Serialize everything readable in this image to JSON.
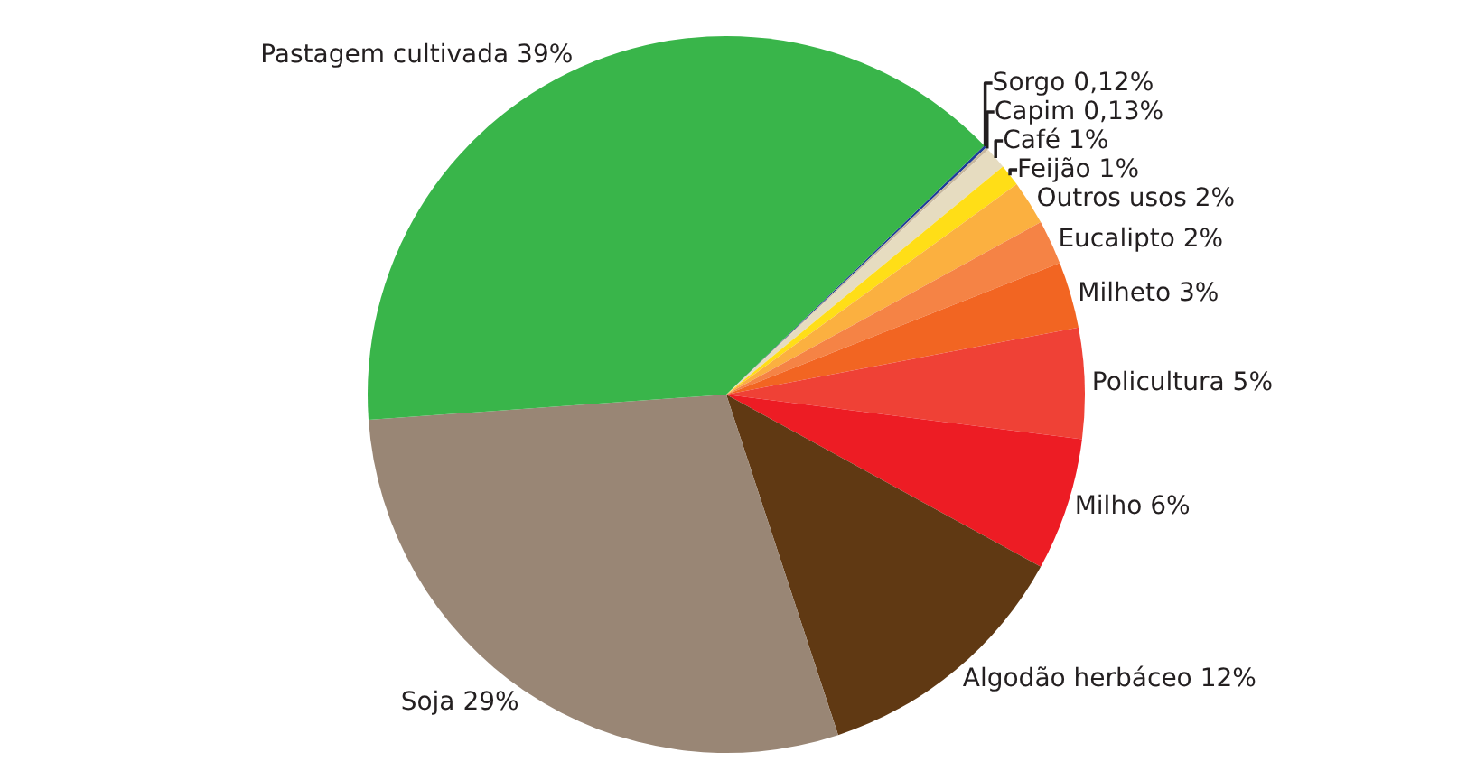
{
  "chart_data": {
    "type": "pie",
    "categories": [
      "Sorgo",
      "Capim",
      "Café",
      "Feijão",
      "Outros usos",
      "Eucalipto",
      "Milheto",
      "Policultura",
      "Milho",
      "Algodão herbáceo",
      "Soja",
      "Pastagem cultivada"
    ],
    "values": [
      0.12,
      0.13,
      1,
      1,
      2,
      2,
      3,
      5,
      6,
      12,
      29,
      39
    ],
    "colors": [
      "#1f3c99",
      "#c8b89e",
      "#e6dcc0",
      "#ffde17",
      "#fbb040",
      "#f58345",
      "#f26522",
      "#ef4136",
      "#ed1c24",
      "#603913",
      "#998675",
      "#39b54a"
    ],
    "value_labels": [
      "0,12%",
      "0,13%",
      "1%",
      "1%",
      "2%",
      "2%",
      "3%",
      "5%",
      "6%",
      "12%",
      "29%",
      "39%"
    ],
    "legend": false
  }
}
